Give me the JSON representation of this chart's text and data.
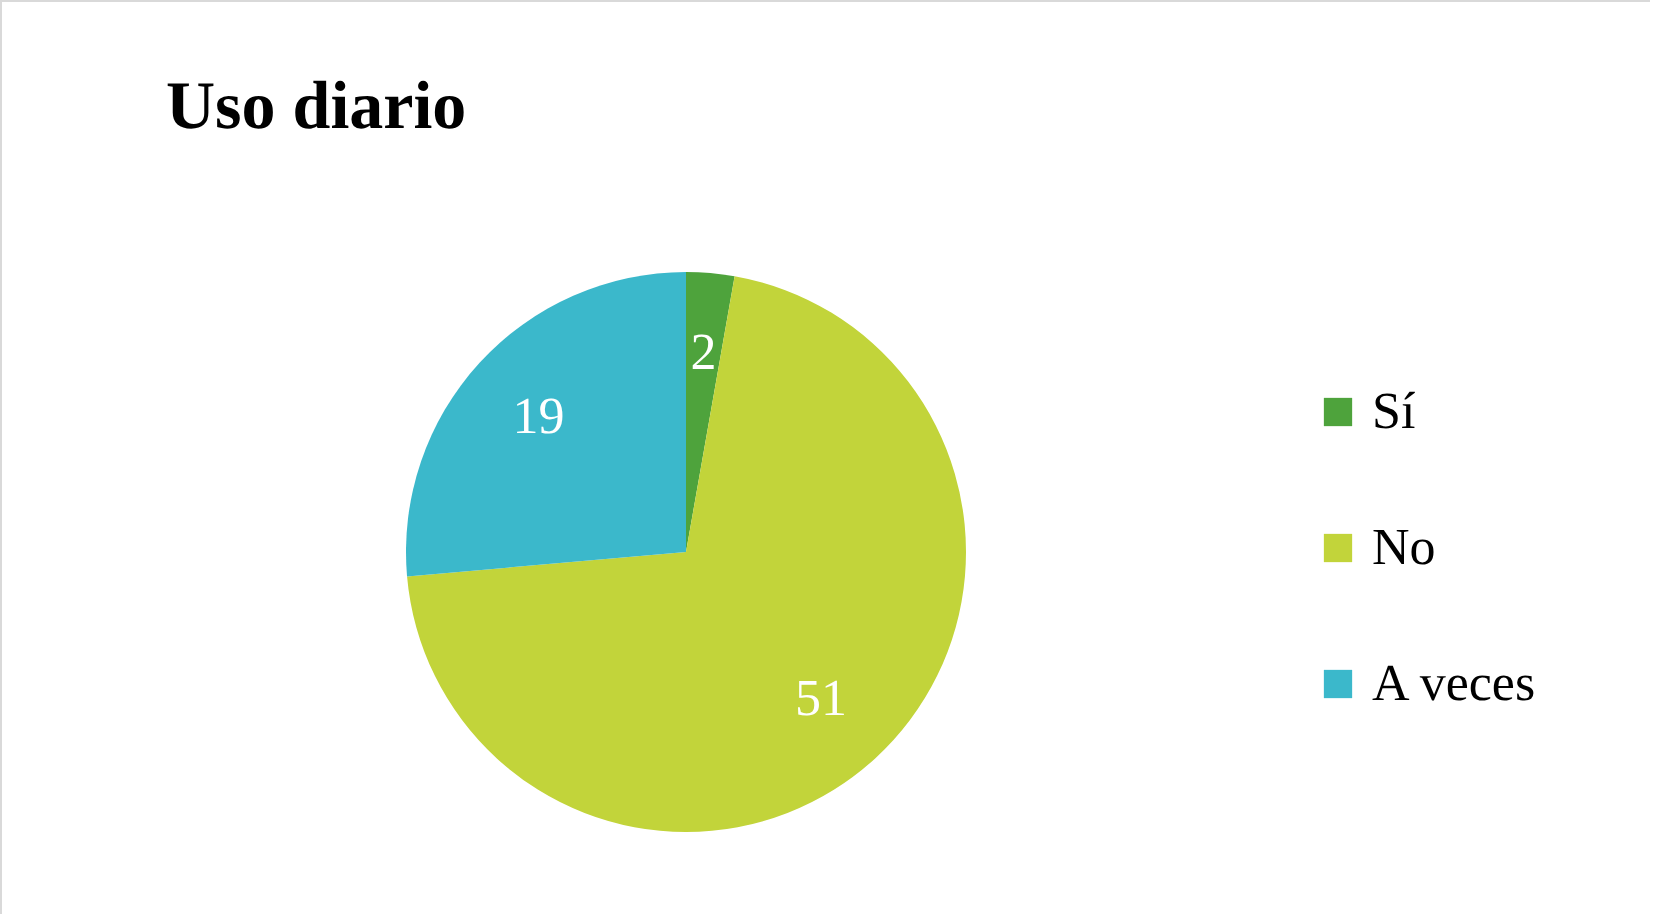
{
  "chart_data": {
    "type": "pie",
    "title": "Uso diario",
    "categories": [
      "Sí",
      "No",
      "A veces"
    ],
    "values": [
      2,
      51,
      19
    ],
    "colors": [
      "#4ea33c",
      "#c2d43a",
      "#3bb8cb"
    ],
    "data_labels": true,
    "legend": "right"
  }
}
